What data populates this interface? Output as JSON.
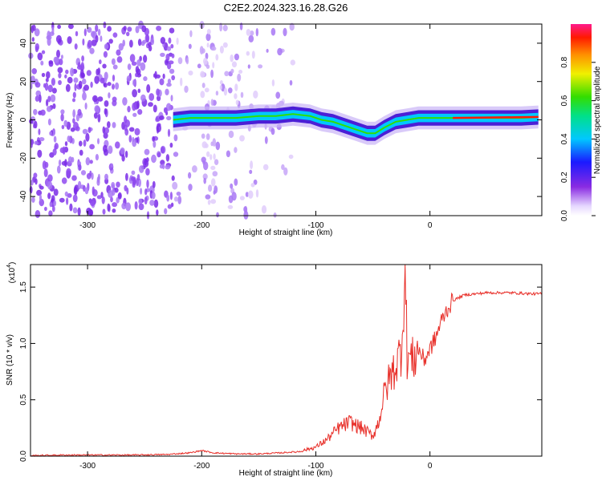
{
  "title": "C2E2.2024.323.16.28.G26",
  "colorbar": {
    "label": "Normalized spectral amplitude",
    "ticks": [
      "0.0",
      "0.2",
      "0.4",
      "0.6",
      "0.8"
    ],
    "tick_values": [
      0.0,
      0.2,
      0.4,
      0.6,
      0.8
    ],
    "range": [
      0,
      1
    ]
  },
  "chart_data": [
    {
      "type": "heatmap",
      "title": "",
      "xlabel": "Height of straight line (km)",
      "ylabel": "Frequency (Hz)",
      "xlim": [
        -350,
        98
      ],
      "ylim": [
        -50,
        50
      ],
      "xticks": [
        -300,
        -200,
        -100,
        0
      ],
      "xtick_labels": [
        "-300",
        "-200",
        "-100",
        "0"
      ],
      "yticks": [
        -40,
        -20,
        0,
        20,
        40
      ],
      "ytick_labels": [
        "-40",
        "-20",
        "0",
        "20",
        "40"
      ],
      "ridge": {
        "x": [
          -225,
          -210,
          -190,
          -170,
          -150,
          -135,
          -120,
          -105,
          -95,
          -85,
          -75,
          -65,
          -55,
          -48,
          -40,
          -30,
          -20,
          -10,
          0,
          20,
          40,
          60,
          80,
          95
        ],
        "y": [
          0,
          1,
          1,
          1,
          2,
          2,
          3,
          2,
          0,
          -1,
          -3,
          -5,
          -7,
          -7,
          -4,
          -1,
          0,
          1,
          1,
          1,
          1,
          1,
          1,
          1.5
        ]
      }
    },
    {
      "type": "line",
      "title": "",
      "xlabel": "Height of straight line (km)",
      "ylabel": "SNR (10 * v/v)",
      "y_multiplier_label": "(x10",
      "y_multiplier_exp": "4",
      "xlim": [
        -350,
        98
      ],
      "ylim": [
        0,
        1.7
      ],
      "xticks": [
        -300,
        -200,
        -100,
        0
      ],
      "xtick_labels": [
        "-300",
        "-200",
        "-100",
        "0"
      ],
      "yticks": [
        0.0,
        0.5,
        1.0,
        1.5
      ],
      "ytick_labels": [
        "0.0",
        "0.5",
        "1.0",
        "1.5"
      ],
      "color": "#e8302a",
      "series": [
        {
          "x": [
            -350,
            -320,
            -290,
            -260,
            -230,
            -210,
            -200,
            -190,
            -170,
            -150,
            -130,
            -115,
            -100,
            -90,
            -80,
            -70,
            -60,
            -50,
            -45,
            -40,
            -35,
            -30,
            -25,
            -22,
            -20,
            -15,
            -10,
            -5,
            0,
            5,
            10,
            15,
            20,
            30,
            50,
            70,
            90,
            98
          ],
          "y": [
            0.005,
            0.01,
            0.01,
            0.01,
            0.015,
            0.03,
            0.05,
            0.03,
            0.02,
            0.02,
            0.03,
            0.04,
            0.08,
            0.15,
            0.25,
            0.3,
            0.25,
            0.18,
            0.3,
            0.55,
            0.7,
            0.8,
            0.95,
            1.68,
            0.9,
            0.85,
            0.95,
            0.85,
            0.95,
            1.05,
            1.2,
            1.3,
            1.38,
            1.43,
            1.45,
            1.45,
            1.44,
            1.44
          ]
        }
      ]
    }
  ]
}
